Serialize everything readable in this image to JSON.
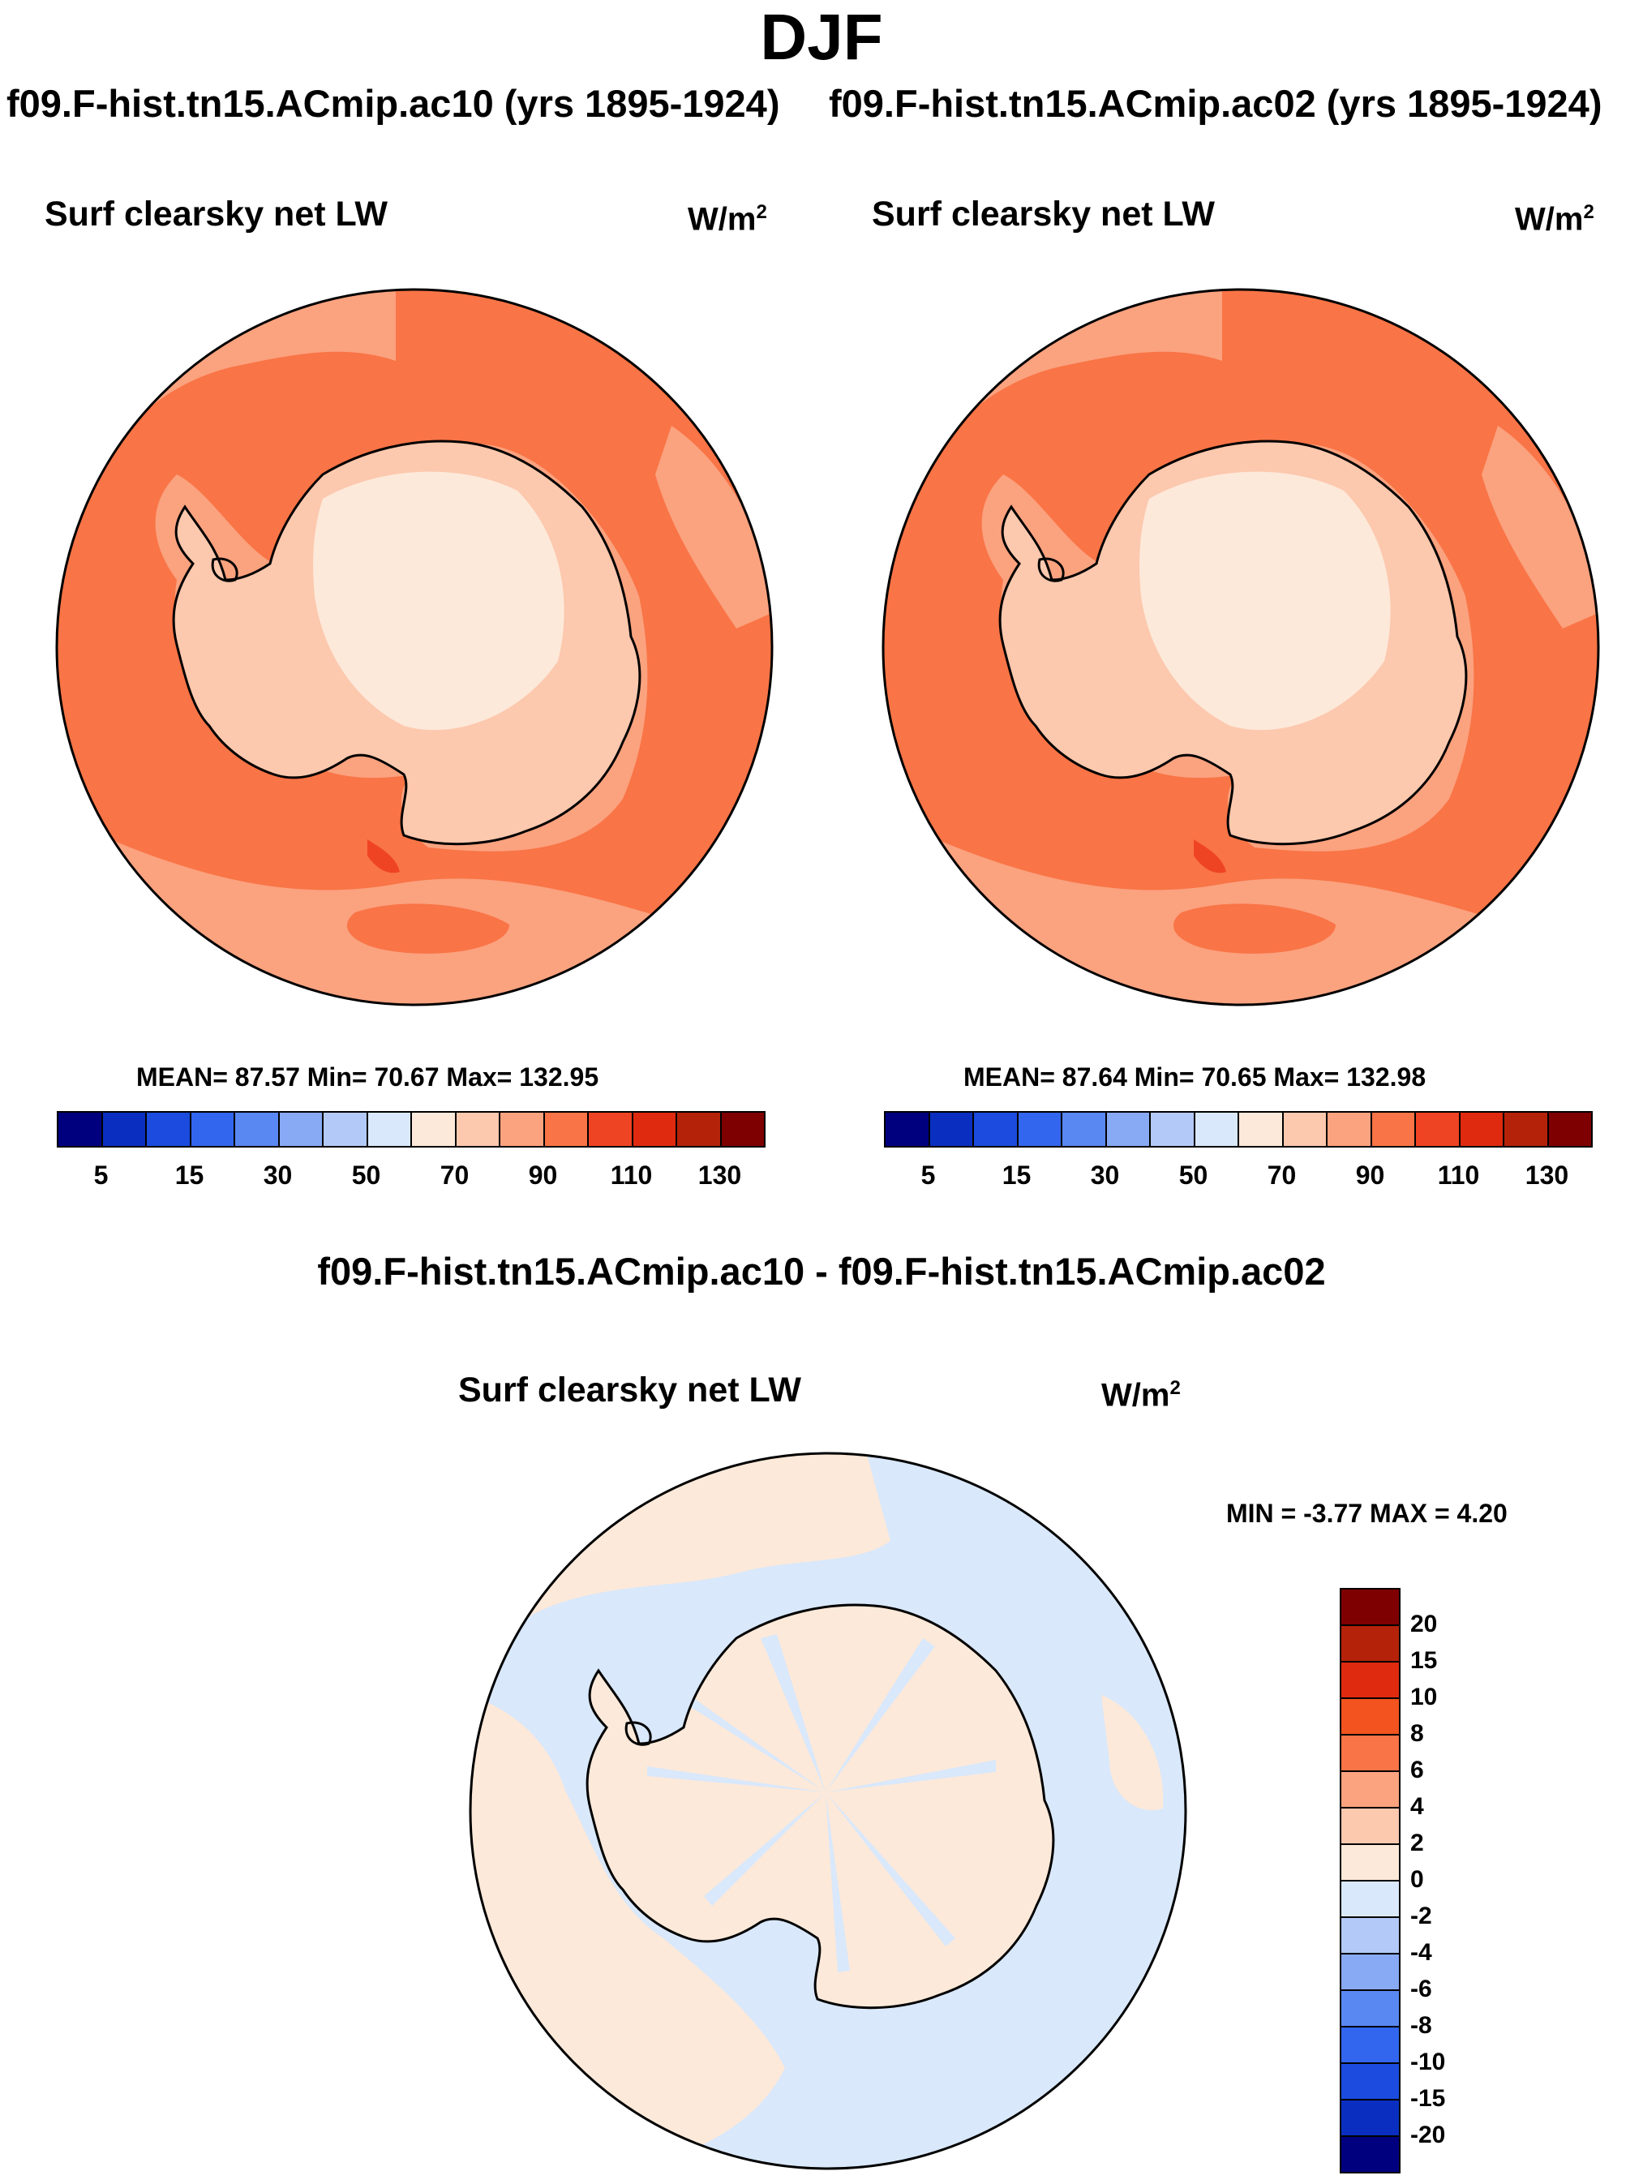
{
  "header": {
    "title": "DJF",
    "case_left": "f09.F-hist.tn15.ACmip.ac10 (yrs 1895-1924)",
    "case_right": "f09.F-hist.tn15.ACmip.ac02 (yrs 1895-1924)",
    "diff_title": "f09.F-hist.tn15.ACmip.ac10 - f09.F-hist.tn15.ACmip.ac02"
  },
  "panels": {
    "left": {
      "variable": "Surf clearsky net LW",
      "units": "W/m",
      "units_exp": "2",
      "stats": "MEAN=  87.57  Min=  70.67  Max= 132.95"
    },
    "right": {
      "variable": "Surf clearsky net LW",
      "units": "W/m",
      "units_exp": "2",
      "stats": "MEAN=  87.64  Min=  70.65  Max= 132.98"
    },
    "diff": {
      "variable": "Surf clearsky net LW",
      "units": "W/m",
      "units_exp": "2",
      "stats": "MIN =  -3.77 MAX =   4.20"
    }
  },
  "colorbar_abs": {
    "colors": [
      "#00007f",
      "#0a2fc0",
      "#1b4cdf",
      "#3366ee",
      "#5a88f2",
      "#88aaf4",
      "#b3c9f7",
      "#d9e8fb",
      "#fde9d9",
      "#fcc8ae",
      "#fba27f",
      "#f97446",
      "#ef4423",
      "#df2a0f",
      "#b5220a",
      "#7f0000"
    ],
    "labels": [
      "5",
      "15",
      "30",
      "50",
      "70",
      "90",
      "110",
      "130"
    ]
  },
  "colorbar_diff": {
    "colors": [
      "#7f0000",
      "#b5220a",
      "#df2a0f",
      "#f2531f",
      "#f97446",
      "#fba27f",
      "#fcc8ae",
      "#fde9d9",
      "#d9e8fb",
      "#b3c9f7",
      "#88aaf4",
      "#5a88f2",
      "#3366ee",
      "#1b4cdf",
      "#0a2fc0",
      "#00007f"
    ],
    "labels": [
      "20",
      "15",
      "10",
      "8",
      "6",
      "4",
      "2",
      "0",
      "-2",
      "-4",
      "-6",
      "-8",
      "-10",
      "-15",
      "-20"
    ]
  },
  "map_colors": {
    "ocean_main": "#f97446",
    "ocean_light": "#fba27f",
    "land_main": "#fcc8ae",
    "land_light": "#fde9d9",
    "hot": "#ef4423",
    "diff_neg": "#d9e8fb",
    "diff_pos": "#fde9d9"
  }
}
